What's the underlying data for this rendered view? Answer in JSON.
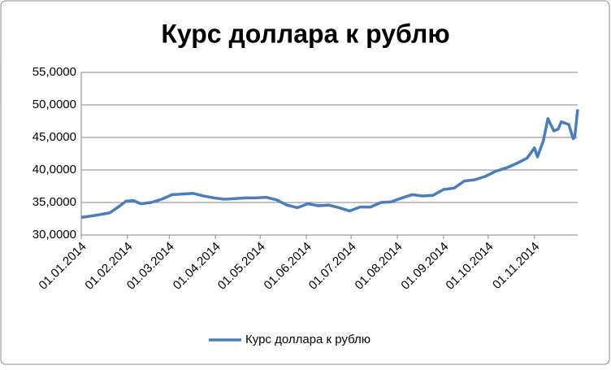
{
  "chart_data": {
    "type": "line",
    "title": "Курс доллара к рублю",
    "x": [
      "2014-01-01",
      "2014-01-10",
      "2014-01-20",
      "2014-01-27",
      "2014-01-31",
      "2014-02-05",
      "2014-02-10",
      "2014-02-17",
      "2014-02-24",
      "2014-03-03",
      "2014-03-10",
      "2014-03-17",
      "2014-03-24",
      "2014-03-31",
      "2014-04-07",
      "2014-04-14",
      "2014-04-21",
      "2014-04-28",
      "2014-05-05",
      "2014-05-12",
      "2014-05-19",
      "2014-05-26",
      "2014-06-02",
      "2014-06-09",
      "2014-06-16",
      "2014-06-23",
      "2014-06-30",
      "2014-07-07",
      "2014-07-14",
      "2014-07-21",
      "2014-07-28",
      "2014-08-04",
      "2014-08-11",
      "2014-08-18",
      "2014-08-25",
      "2014-09-01",
      "2014-09-08",
      "2014-09-15",
      "2014-09-22",
      "2014-09-29",
      "2014-10-06",
      "2014-10-13",
      "2014-10-20",
      "2014-10-27",
      "2014-11-01",
      "2014-11-03",
      "2014-11-07",
      "2014-11-10",
      "2014-11-14",
      "2014-11-17",
      "2014-11-19",
      "2014-11-24",
      "2014-11-27",
      "2014-11-28",
      "2014-11-30"
    ],
    "series": [
      {
        "name": "Курс доллара к рублю",
        "color": "#4a7ebb",
        "values": [
          32.7,
          33.0,
          33.4,
          34.5,
          35.2,
          35.3,
          34.8,
          35.0,
          35.5,
          36.2,
          36.3,
          36.4,
          36.0,
          35.7,
          35.5,
          35.6,
          35.7,
          35.7,
          35.8,
          35.4,
          34.6,
          34.2,
          34.8,
          34.5,
          34.6,
          34.2,
          33.7,
          34.3,
          34.3,
          35.0,
          35.1,
          35.7,
          36.2,
          36.0,
          36.1,
          37.0,
          37.2,
          38.3,
          38.5,
          39.0,
          39.8,
          40.3,
          41.0,
          41.8,
          43.4,
          42.0,
          44.5,
          47.9,
          46.0,
          46.3,
          47.4,
          47.0,
          44.8,
          45.0,
          49.3
        ]
      }
    ],
    "xlim": [
      "2014-01-01",
      "2014-11-30"
    ],
    "xticks": [
      {
        "value": "2014-01-01",
        "label": "01.01.2014"
      },
      {
        "value": "2014-02-01",
        "label": "01.02.2014"
      },
      {
        "value": "2014-03-01",
        "label": "01.03.2014"
      },
      {
        "value": "2014-04-01",
        "label": "01.04.2014"
      },
      {
        "value": "2014-05-01",
        "label": "01.05.2014"
      },
      {
        "value": "2014-06-01",
        "label": "01.06.2014"
      },
      {
        "value": "2014-07-01",
        "label": "01.07.2014"
      },
      {
        "value": "2014-08-01",
        "label": "01.08.2014"
      },
      {
        "value": "2014-09-01",
        "label": "01.09.2014"
      },
      {
        "value": "2014-10-01",
        "label": "01.10.2014"
      },
      {
        "value": "2014-11-01",
        "label": "01.11.2014"
      }
    ],
    "ylim": [
      30,
      55
    ],
    "yticks": [
      {
        "value": 30,
        "label": "30,0000"
      },
      {
        "value": 35,
        "label": "35,0000"
      },
      {
        "value": 40,
        "label": "40,0000"
      },
      {
        "value": 45,
        "label": "45,0000"
      },
      {
        "value": 50,
        "label": "50,0000"
      },
      {
        "value": 55,
        "label": "55,0000"
      }
    ],
    "grid": true,
    "legend": "bottom"
  }
}
